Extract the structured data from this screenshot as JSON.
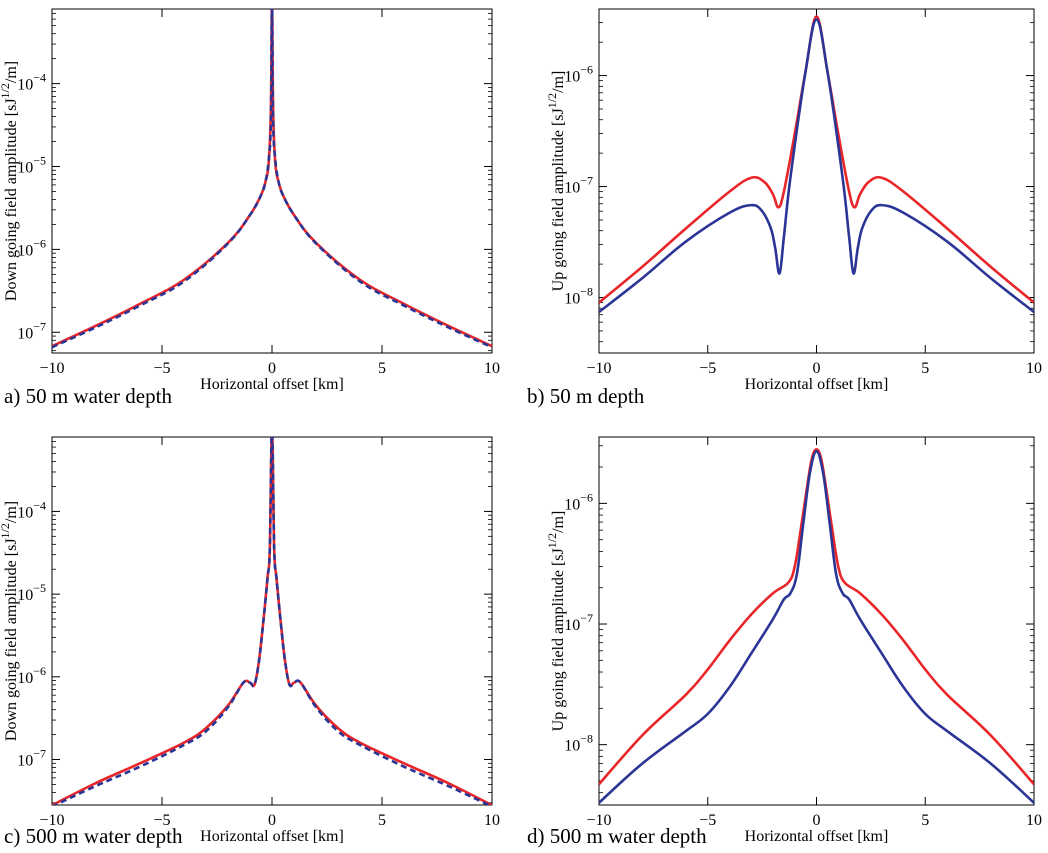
{
  "colors": {
    "red": "#e8262a",
    "blue": "#2b3595",
    "axis": "#000000"
  },
  "chart_data": [
    {
      "id": "a",
      "type": "line",
      "caption": "a) 50 m water depth",
      "xlabel": "Horizontal offset [km]",
      "ylabel": "Down going field amplitude [sJ^{1/2}/m]",
      "xlim": [
        -10,
        10
      ],
      "ylim_log10": [
        -7.25,
        -3.1
      ],
      "yscale": "log",
      "xticks": [
        -10,
        -5,
        0,
        5,
        10
      ],
      "xticklabels": [
        "−10",
        "−5",
        "0",
        "5",
        "10"
      ],
      "yticks": [
        {
          "base": "10",
          "exp": "−7",
          "log10": -7
        },
        {
          "base": "10",
          "exp": "−6",
          "log10": -6
        },
        {
          "base": "10",
          "exp": "−5",
          "log10": -5
        },
        {
          "base": "10",
          "exp": "−4",
          "log10": -4
        }
      ],
      "grid": false,
      "series": [
        {
          "color": "red",
          "style": "solid",
          "x": [
            -10,
            -8,
            -6,
            -4,
            -2,
            -1,
            -0.5,
            -0.3,
            -0.15,
            -0.05,
            0,
            0.05,
            0.15,
            0.3,
            0.5,
            1,
            2,
            4,
            6,
            8,
            10
          ],
          "y": [
            6.8e-08,
            1.2e-07,
            2.2e-07,
            4.3e-07,
            1.2e-06,
            2.6e-06,
            4.5e-06,
            6.5e-06,
            1.1e-05,
            5e-05,
            0.001,
            5e-05,
            1.1e-05,
            6.5e-06,
            4.5e-06,
            2.6e-06,
            1.2e-06,
            4.3e-07,
            2.2e-07,
            1.2e-07,
            6.8e-08
          ]
        },
        {
          "color": "blue",
          "style": "dashed",
          "x": [
            -10,
            -8,
            -6,
            -4,
            -2,
            -1,
            -0.5,
            -0.3,
            -0.15,
            -0.05,
            0,
            0.05,
            0.15,
            0.3,
            0.5,
            1,
            2,
            4,
            6,
            8,
            10
          ],
          "y": [
            6.6e-08,
            1.15e-07,
            2.1e-07,
            4.1e-07,
            1.18e-06,
            2.6e-06,
            4.5e-06,
            6.5e-06,
            1.2e-05,
            3.5e-05,
            0.001,
            3.5e-05,
            1.2e-05,
            6.5e-06,
            4.5e-06,
            2.6e-06,
            1.18e-06,
            4.1e-07,
            2.1e-07,
            1.15e-07,
            6.6e-08
          ]
        }
      ]
    },
    {
      "id": "b",
      "type": "line",
      "caption": "b) 50 m depth",
      "xlabel": "Horizontal offset [km]",
      "ylabel": "Up going field amplitude [sJ^{1/2}/m]",
      "xlim": [
        -10,
        10
      ],
      "ylim_log10": [
        -8.5,
        -5.4
      ],
      "yscale": "log",
      "xticks": [
        -10,
        -5,
        0,
        5,
        10
      ],
      "xticklabels": [
        "−10",
        "−5",
        "0",
        "5",
        "10"
      ],
      "yticks": [
        {
          "base": "10",
          "exp": "−8",
          "log10": -8
        },
        {
          "base": "10",
          "exp": "−7",
          "log10": -7
        },
        {
          "base": "10",
          "exp": "−6",
          "log10": -6
        }
      ],
      "grid": false,
      "series": [
        {
          "color": "red",
          "style": "solid",
          "x": [
            -10,
            -8,
            -6,
            -4,
            -3,
            -2.4,
            -2,
            -1.75,
            -1.5,
            -1,
            -0.5,
            0,
            0.5,
            1,
            1.5,
            1.75,
            2,
            2.4,
            3,
            4,
            6,
            8,
            10
          ],
          "y": [
            9e-09,
            1.9e-08,
            4.2e-08,
            9e-08,
            1.2e-07,
            1.1e-07,
            8.5e-08,
            6.5e-08,
            9e-08,
            3e-07,
            1.1e-06,
            3.4e-06,
            1.1e-06,
            3e-07,
            9e-08,
            6.5e-08,
            8.5e-08,
            1.1e-07,
            1.2e-07,
            9e-08,
            4.2e-08,
            1.9e-08,
            9e-09
          ]
        },
        {
          "color": "blue",
          "style": "solid",
          "x": [
            -10,
            -8,
            -6,
            -4,
            -3,
            -2.5,
            -2.1,
            -1.9,
            -1.7,
            -1.5,
            -1.2,
            -0.5,
            0,
            0.5,
            1.2,
            1.5,
            1.7,
            1.9,
            2.1,
            2.5,
            3,
            4,
            6,
            8,
            10
          ],
          "y": [
            7.4e-09,
            1.5e-08,
            3.2e-08,
            5.8e-08,
            6.8e-08,
            6e-08,
            4.2e-08,
            2.8e-08,
            1.65e-08,
            3.5e-08,
            1.2e-07,
            1.1e-06,
            3.2e-06,
            1.1e-06,
            1.2e-07,
            3.5e-08,
            1.65e-08,
            2.8e-08,
            4.2e-08,
            6e-08,
            6.8e-08,
            5.8e-08,
            3.2e-08,
            1.5e-08,
            7.4e-09
          ]
        }
      ]
    },
    {
      "id": "c",
      "type": "line",
      "caption": "c) 500 m water depth",
      "xlabel": "Horizontal offset [km]",
      "ylabel": "Down going field amplitude [sJ^{1/2}/m]",
      "xlim": [
        -10,
        10
      ],
      "ylim_log10": [
        -7.55,
        -3.1
      ],
      "yscale": "log",
      "xticks": [
        -10,
        -5,
        0,
        5,
        10
      ],
      "xticklabels": [
        "−10",
        "−5",
        "0",
        "5",
        "10"
      ],
      "yticks": [
        {
          "base": "10",
          "exp": "−7",
          "log10": -7
        },
        {
          "base": "10",
          "exp": "−6",
          "log10": -6
        },
        {
          "base": "10",
          "exp": "−5",
          "log10": -5
        },
        {
          "base": "10",
          "exp": "−4",
          "log10": -4
        }
      ],
      "grid": false,
      "series": [
        {
          "color": "red",
          "style": "solid",
          "x": [
            -10,
            -8,
            -6,
            -4,
            -3,
            -2,
            -1.3,
            -1,
            -0.8,
            -0.6,
            -0.4,
            -0.2,
            -0.1,
            0,
            0.1,
            0.2,
            0.4,
            0.6,
            0.8,
            1,
            1.3,
            2,
            3,
            4,
            6,
            8,
            10
          ],
          "y": [
            2.8e-08,
            5.2e-08,
            9e-08,
            1.6e-07,
            2.4e-07,
            4.5e-07,
            8.5e-07,
            8.5e-07,
            8e-07,
            1.5e-06,
            4.5e-06,
            1.6e-05,
            3.5e-05,
            0.001,
            3.5e-05,
            1.6e-05,
            4.5e-06,
            1.5e-06,
            8e-07,
            8.5e-07,
            8.5e-07,
            4.5e-07,
            2.4e-07,
            1.6e-07,
            9e-08,
            5.2e-08,
            2.8e-08
          ]
        },
        {
          "color": "blue",
          "style": "dashed",
          "x": [
            -10,
            -8,
            -6,
            -4,
            -3,
            -2,
            -1.3,
            -1,
            -0.8,
            -0.6,
            -0.4,
            -0.2,
            -0.1,
            0,
            0.1,
            0.2,
            0.4,
            0.6,
            0.8,
            1,
            1.3,
            2,
            3,
            4,
            6,
            8,
            10
          ],
          "y": [
            2.7e-08,
            4.8e-08,
            8.2e-08,
            1.5e-07,
            2.2e-07,
            4.3e-07,
            8.5e-07,
            8.5e-07,
            8e-07,
            1.5e-06,
            4.5e-06,
            1.6e-05,
            3.5e-05,
            0.001,
            3.5e-05,
            1.6e-05,
            4.5e-06,
            1.5e-06,
            8e-07,
            8.5e-07,
            8.5e-07,
            4.3e-07,
            2.2e-07,
            1.5e-07,
            8.2e-08,
            4.8e-08,
            2.7e-08
          ]
        }
      ]
    },
    {
      "id": "d",
      "type": "line",
      "caption": "d) 500 m water depth",
      "xlabel": "Horizontal offset [km]",
      "ylabel": "Up going field amplitude [sJ^{1/2}/m]",
      "xlim": [
        -10,
        10
      ],
      "ylim_log10": [
        -8.5,
        -5.45
      ],
      "yscale": "log",
      "xticks": [
        -10,
        -5,
        0,
        5,
        10
      ],
      "xticklabels": [
        "−10",
        "−5",
        "0",
        "5",
        "10"
      ],
      "yticks": [
        {
          "base": "10",
          "exp": "−8",
          "log10": -8
        },
        {
          "base": "10",
          "exp": "−7",
          "log10": -7
        },
        {
          "base": "10",
          "exp": "−6",
          "log10": -6
        }
      ],
      "grid": false,
      "series": [
        {
          "color": "red",
          "style": "solid",
          "x": [
            -10,
            -8,
            -6,
            -5,
            -4,
            -3,
            -2,
            -1.3,
            -1,
            -0.7,
            -0.4,
            -0.2,
            0,
            0.2,
            0.4,
            0.7,
            1,
            1.3,
            2,
            3,
            4,
            5,
            6,
            8,
            10
          ],
          "y": [
            4.7e-09,
            1.2e-08,
            2.6e-08,
            4.2e-08,
            7.3e-08,
            1.2e-07,
            1.8e-07,
            2.2e-07,
            3e-07,
            6.5e-07,
            1.5e-06,
            2.4e-06,
            2.8e-06,
            2.4e-06,
            1.5e-06,
            6.5e-07,
            3e-07,
            2.2e-07,
            1.8e-07,
            1.2e-07,
            7.3e-08,
            4.2e-08,
            2.6e-08,
            1.2e-08,
            4.7e-09
          ]
        },
        {
          "color": "blue",
          "style": "solid",
          "x": [
            -10,
            -8,
            -6,
            -5,
            -4,
            -3,
            -2,
            -1.5,
            -1.2,
            -0.9,
            -0.6,
            -0.3,
            0,
            0.3,
            0.6,
            0.9,
            1.2,
            1.5,
            2,
            3,
            4,
            5,
            6,
            8,
            10
          ],
          "y": [
            3.3e-09,
            7e-09,
            1.3e-08,
            1.8e-08,
            3e-08,
            5.7e-08,
            1.1e-07,
            1.6e-07,
            1.8e-07,
            2.6e-07,
            7e-07,
            1.8e-06,
            2.7e-06,
            1.8e-06,
            7e-07,
            2.6e-07,
            1.8e-07,
            1.6e-07,
            1.1e-07,
            5.7e-08,
            3e-08,
            1.8e-08,
            1.3e-08,
            7e-09,
            3.3e-09
          ]
        }
      ]
    }
  ]
}
